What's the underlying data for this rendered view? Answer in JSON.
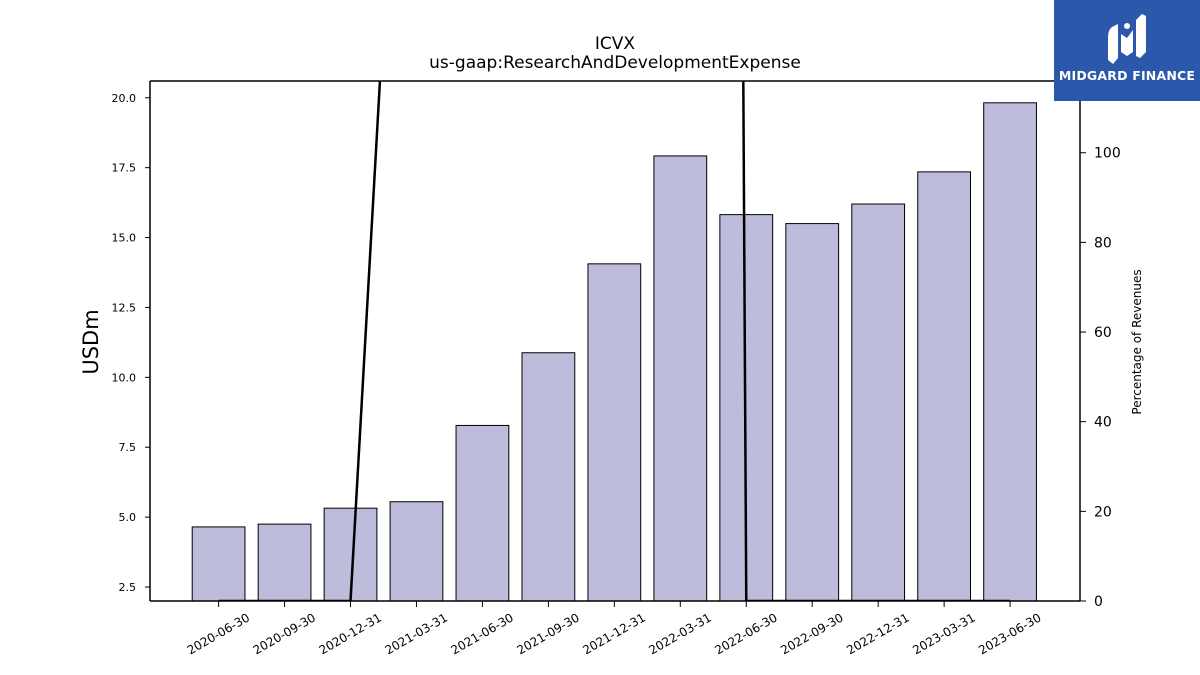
{
  "chart_data": {
    "type": "bar",
    "title": "ICVX",
    "subtitle": "us-gaap:ResearchAndDevelopmentExpense",
    "ylabel": "USDm",
    "y2label": "Percentage of Revenues",
    "categories": [
      "2020-06-30",
      "2020-09-30",
      "2020-12-31",
      "2021-03-31",
      "2021-06-30",
      "2021-09-30",
      "2021-12-31",
      "2022-03-31",
      "2022-06-30",
      "2022-09-30",
      "2022-12-31",
      "2023-03-31",
      "2023-06-30"
    ],
    "series": [
      {
        "axis": "left",
        "type": "bar",
        "color": "#bebcdb",
        "values": [
          4.65,
          4.75,
          5.32,
          5.55,
          8.28,
          10.88,
          14.06,
          17.92,
          15.82,
          15.5,
          16.2,
          17.35,
          19.82
        ]
      },
      {
        "axis": "right",
        "type": "line",
        "color": "#000000",
        "values": [
          0,
          0,
          0,
          null,
          null,
          null,
          null,
          null,
          0,
          0,
          0,
          0,
          0
        ]
      }
    ],
    "ylim": [
      2.0,
      20.6
    ],
    "yticks": [
      "2.5",
      "5.0",
      "7.5",
      "10.0",
      "12.5",
      "15.0",
      "17.5",
      "20.0"
    ],
    "y2lim": [
      0,
      116
    ],
    "y2ticks": [
      "0",
      "20",
      "40",
      "60",
      "80",
      "100"
    ],
    "grid": false
  },
  "logo": {
    "text": "MIDGARD FINANCE",
    "color": "#2b58ab"
  }
}
